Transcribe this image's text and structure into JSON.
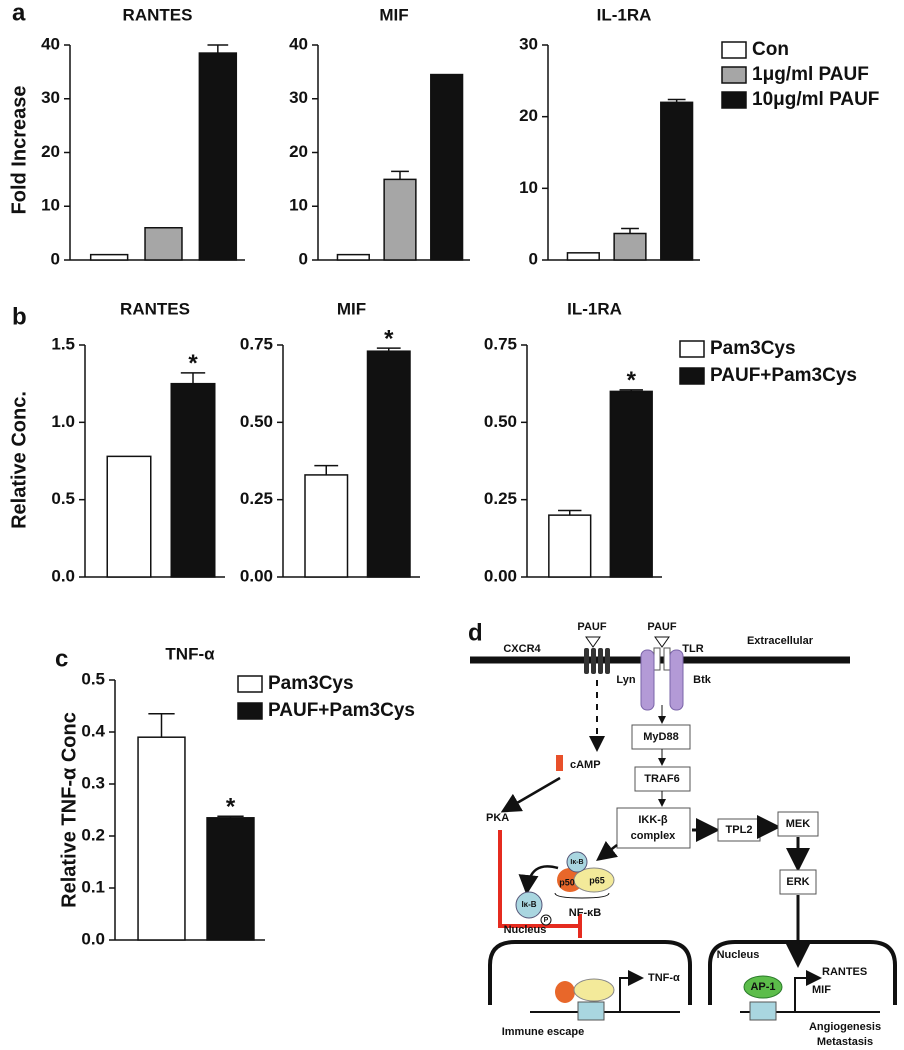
{
  "panel_labels": [
    "a",
    "b",
    "c"
  ],
  "chart_data": [
    {
      "type": "bar",
      "title": "RANTES",
      "ylabel": "Fold Increase",
      "categories": [
        null
      ],
      "ylim": [
        0,
        40
      ],
      "yticks": [
        0,
        10,
        20,
        30,
        40
      ],
      "series": [
        {
          "color": "#ffffff",
          "values": [
            1
          ],
          "errors": [
            null
          ]
        },
        {
          "color": "#a6a6a6",
          "values": [
            6
          ],
          "errors": [
            null
          ]
        },
        {
          "color": "#111111",
          "values": [
            38.5
          ],
          "errors": [
            1.5
          ]
        }
      ]
    },
    {
      "type": "bar",
      "title": "MIF",
      "categories": [
        null
      ],
      "ylim": [
        0,
        40
      ],
      "yticks": [
        0,
        10,
        20,
        30,
        40
      ],
      "series": [
        {
          "color": "#ffffff",
          "values": [
            1
          ],
          "errors": [
            null
          ]
        },
        {
          "color": "#a6a6a6",
          "values": [
            15
          ],
          "errors": [
            1.5
          ]
        },
        {
          "color": "#111111",
          "values": [
            34.5
          ],
          "errors": [
            null
          ]
        }
      ]
    },
    {
      "type": "bar",
      "title": "IL-1RA",
      "categories": [
        null
      ],
      "ylim": [
        0,
        30
      ],
      "yticks": [
        0,
        10,
        20,
        30
      ],
      "legend": "right",
      "series": [
        {
          "name": "Con",
          "color": "#ffffff",
          "values": [
            1
          ],
          "errors": [
            null
          ]
        },
        {
          "name": "1μg/ml PAUF",
          "color": "#a6a6a6",
          "values": [
            3.7
          ],
          "errors": [
            0.7
          ]
        },
        {
          "name": "10μg/ml PAUF",
          "color": "#111111",
          "values": [
            22
          ],
          "errors": [
            0.4
          ]
        }
      ]
    },
    {
      "type": "bar",
      "title": "RANTES",
      "ylabel": "Relative Conc.",
      "categories": [
        null
      ],
      "annotation": "*",
      "ylim": [
        0,
        1.5
      ],
      "yticks": [
        {
          "value": 0,
          "label": "0.0"
        },
        0.5,
        {
          "value": 1,
          "label": "1.0"
        },
        1.5
      ],
      "series": [
        {
          "color": "#ffffff",
          "values": [
            0.78
          ],
          "errors": [
            null
          ]
        },
        {
          "color": "#111111",
          "values": [
            1.25
          ],
          "errors": [
            0.07
          ]
        }
      ]
    },
    {
      "type": "bar",
      "title": "MIF",
      "categories": [
        null
      ],
      "annotation": "*",
      "ylim": [
        0,
        0.75
      ],
      "yticks": [
        {
          "value": 0,
          "label": "0.00"
        },
        0.25,
        {
          "value": 0.5,
          "label": "0.50"
        },
        0.75
      ],
      "series": [
        {
          "color": "#ffffff",
          "values": [
            0.33
          ],
          "errors": [
            0.03
          ]
        },
        {
          "color": "#111111",
          "values": [
            0.73
          ],
          "errors": [
            0.01
          ]
        }
      ]
    },
    {
      "type": "bar",
      "title": "IL-1RA",
      "categories": [
        null
      ],
      "annotation": "*",
      "legend": "right",
      "ylim": [
        0,
        0.75
      ],
      "yticks": [
        {
          "value": 0,
          "label": "0.00"
        },
        0.25,
        {
          "value": 0.5,
          "label": "0.50"
        },
        0.75
      ],
      "series": [
        {
          "name": "Pam3Cys",
          "color": "#ffffff",
          "values": [
            0.2
          ],
          "errors": [
            0.015
          ]
        },
        {
          "name": "PAUF+Pam3Cys",
          "color": "#111111",
          "values": [
            0.6
          ],
          "errors": [
            0.005
          ]
        }
      ]
    },
    {
      "type": "bar",
      "title": "TNF-α",
      "ylabel": "Relative TNF-α Conc",
      "categories": [
        null
      ],
      "annotation": "*",
      "legend": "upper right",
      "ylim": [
        0,
        0.5
      ],
      "yticks": [
        {
          "value": 0,
          "label": "0.0"
        },
        0.1,
        0.2,
        0.3,
        0.4,
        0.5
      ],
      "series": [
        {
          "name": "Pam3Cys",
          "color": "#ffffff",
          "values": [
            0.39
          ],
          "errors": [
            0.045
          ]
        },
        {
          "name": "PAUF+Pam3Cys",
          "color": "#111111",
          "values": [
            0.235
          ],
          "errors": [
            0.003
          ]
        }
      ]
    }
  ],
  "diagram": {
    "label": "d",
    "pauf_left": "PAUF",
    "pauf_right": "PAUF",
    "cxcr4": "CXCR4",
    "tlr": "TLR",
    "extracellular": "Extracellular",
    "lyn": "Lyn",
    "btk": "Btk",
    "myd88": "MyD88",
    "camp": "cAMP",
    "traf6": "TRAF6",
    "pka": "PKA",
    "ikk": [
      "IKK-β",
      "complex"
    ],
    "tpl2": "TPL2",
    "mek": "MEK",
    "erk": "ERK",
    "ikb_top": "Iκ-B",
    "ikb_free": "Iκ-B",
    "p50": "p50",
    "p65": "p65",
    "phospho": "P",
    "nfkb": "NF-κB",
    "nucleus_left": "Nucleus",
    "nucleus_right": "Nucleus",
    "tnf": "TNF-α",
    "ap1": "AP-1",
    "targets": [
      "RANTES",
      "MIF"
    ],
    "outcome_left": "Immune escape",
    "outcome_right": [
      "Angiogenesis",
      "Metastasis"
    ]
  }
}
